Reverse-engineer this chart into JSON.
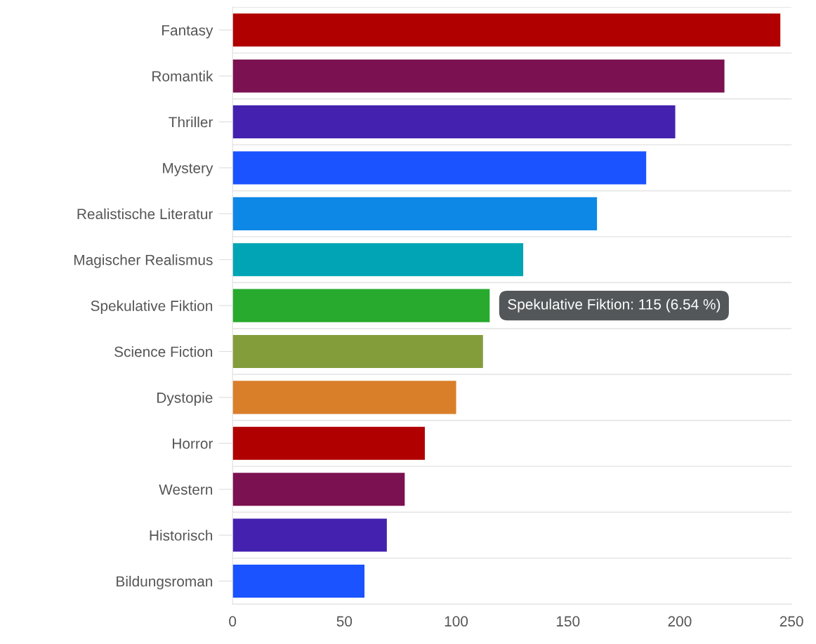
{
  "chart_data": {
    "type": "bar",
    "orientation": "horizontal",
    "categories": [
      "Fantasy",
      "Romantik",
      "Thriller",
      "Mystery",
      "Realistische Literatur",
      "Magischer Realismus",
      "Spekulative Fiktion",
      "Science Fiction",
      "Dystopie",
      "Horror",
      "Western",
      "Historisch",
      "Bildungsroman"
    ],
    "values": [
      245,
      220,
      198,
      185,
      163,
      130,
      115,
      112,
      100,
      86,
      77,
      69,
      59
    ],
    "colors": [
      "#b00000",
      "#7b1150",
      "#4421af",
      "#1a53ff",
      "#0d88e6",
      "#00a4b4",
      "#27aa2e",
      "#839d3b",
      "#d97e29",
      "#b00000",
      "#7b1150",
      "#4421af",
      "#1a53ff"
    ],
    "xlim": [
      0,
      250
    ],
    "xticks": [
      0,
      50,
      100,
      150,
      200,
      250
    ],
    "grid": "y",
    "annotations": [
      {
        "text": "Spekulative Fiktion: 115 (6.54 %)",
        "x": 115,
        "y": "Spekulative Fiktion"
      }
    ]
  }
}
